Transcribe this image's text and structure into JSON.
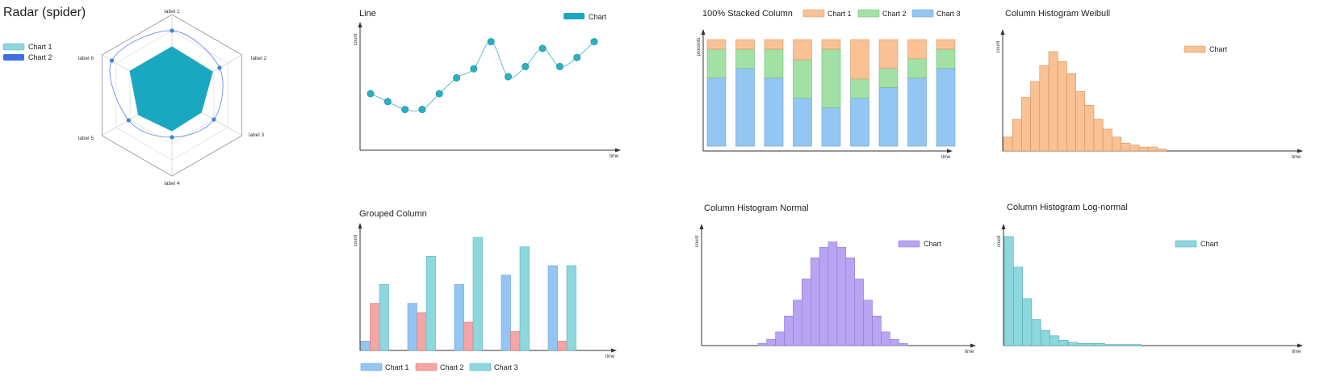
{
  "chart_data": [
    {
      "id": "radar",
      "type": "radar",
      "title": "Radar (spider)",
      "categories": [
        "label 1",
        "label 2",
        "label 3",
        "label 4",
        "label 5",
        "label 6"
      ],
      "max": 5,
      "series": [
        {
          "name": "Chart 1",
          "values": [
            3.0,
            2.9,
            2.1,
            2.2,
            2.4,
            3.0
          ],
          "color": "#1aa8c0",
          "fill": true
        },
        {
          "name": "Chart 2",
          "values": [
            4.0,
            3.4,
            3.0,
            2.6,
            3.1,
            4.3
          ],
          "color": "#3d6fe0",
          "fill": false
        }
      ],
      "legend": "top-left"
    },
    {
      "id": "line",
      "type": "line",
      "title": "Line",
      "xlabel": "time",
      "ylabel": "count",
      "ylim": [
        0,
        10
      ],
      "x": [
        1,
        2,
        3,
        4,
        5,
        6,
        7,
        8,
        9,
        10,
        11,
        12,
        13,
        14
      ],
      "series": [
        {
          "name": "Chart",
          "values": [
            5.0,
            4.3,
            3.6,
            3.6,
            5.0,
            6.4,
            7.2,
            9.6,
            6.5,
            7.4,
            9.0,
            7.4,
            8.2,
            9.6
          ],
          "color": "#2ab0c2"
        }
      ],
      "legend": "top-right"
    },
    {
      "id": "stacked",
      "type": "bar",
      "stacked": "percent",
      "title": "100% Stacked Column",
      "xlabel": "time",
      "ylabel": "procents",
      "ylim": [
        0,
        100
      ],
      "categories": [
        "1",
        "2",
        "3",
        "4",
        "5",
        "6",
        "7",
        "8",
        "9"
      ],
      "series": [
        {
          "name": "Chart 3",
          "values": [
            64,
            73,
            64,
            45,
            36,
            45,
            55,
            64,
            73
          ],
          "color": "#93c6f2",
          "stroke": "#6e9ecc"
        },
        {
          "name": "Chart 2",
          "values": [
            27,
            18,
            27,
            36,
            55,
            18,
            18,
            18,
            18
          ],
          "color": "#a2e0a6",
          "stroke": "#78b87c"
        },
        {
          "name": "Chart 1",
          "values": [
            9,
            9,
            9,
            19,
            9,
            37,
            27,
            18,
            9
          ],
          "color": "#f9c194",
          "stroke": "#d59c6c"
        }
      ],
      "legend_order": [
        "Chart 1",
        "Chart 2",
        "Chart 3"
      ],
      "legend": "top"
    },
    {
      "id": "weibull",
      "type": "histogram",
      "title": "Column Histogram Weibull",
      "xlabel": "time",
      "ylabel": "count",
      "ylim": [
        0,
        10
      ],
      "bins": 36,
      "values": [
        1.4,
        3.2,
        5.4,
        7.0,
        8.6,
        10.0,
        9.0,
        7.8,
        6.0,
        4.6,
        3.2,
        2.2,
        1.4,
        0.8,
        0.6,
        0.4,
        0.4,
        0.2,
        0,
        0,
        0,
        0,
        0,
        0,
        0,
        0,
        0,
        0,
        0,
        0,
        0,
        0,
        0,
        0,
        0,
        0
      ],
      "series": [
        {
          "name": "Chart",
          "color": "#f9c194",
          "stroke": "#d08e58"
        }
      ],
      "legend": "top-right"
    },
    {
      "id": "grouped",
      "type": "bar",
      "title": "Grouped Column",
      "xlabel": "time",
      "ylabel": "count",
      "ylim": [
        0,
        12
      ],
      "categories": [
        "1",
        "2",
        "3",
        "4",
        "5"
      ],
      "series": [
        {
          "name": "Chart 1",
          "values": [
            1,
            5,
            7,
            8,
            9
          ],
          "color": "#93c6f2",
          "stroke": "#6e9ecc"
        },
        {
          "name": "Chart 2",
          "values": [
            5,
            4,
            3,
            2,
            1
          ],
          "color": "#f6a5a5",
          "stroke": "#cf7b7b"
        },
        {
          "name": "Chart 3",
          "values": [
            7,
            10,
            12,
            11,
            9
          ],
          "color": "#8ed7df",
          "stroke": "#5ab2bb"
        }
      ],
      "legend": "bottom"
    },
    {
      "id": "normal",
      "type": "histogram",
      "title": "Column Histogram Normal",
      "xlabel": "time",
      "ylabel": "count",
      "ylim": [
        0,
        10
      ],
      "bins": 40,
      "values": [
        0,
        0,
        0,
        0,
        0,
        0,
        0,
        0,
        0,
        0,
        0,
        0,
        0.2,
        0.6,
        1.3,
        2.8,
        4.3,
        6.3,
        8.3,
        9.3,
        9.8,
        9.3,
        8.3,
        6.3,
        4.3,
        2.8,
        1.3,
        0.6,
        0.2,
        0,
        0,
        0,
        0,
        0,
        0,
        0,
        0,
        0,
        0,
        0
      ],
      "series": [
        {
          "name": "Chart",
          "color": "#b8a4f2",
          "stroke": "#8f7ad2"
        }
      ],
      "legend": "top-right"
    },
    {
      "id": "lognormal",
      "type": "histogram",
      "title": "Column Histogram Log-normal",
      "xlabel": "time",
      "ylabel": "count",
      "ylim": [
        0,
        10
      ],
      "bins": 38,
      "values": [
        10.0,
        7.2,
        4.3,
        2.4,
        1.4,
        0.9,
        0.5,
        0.3,
        0.2,
        0.2,
        0.2,
        0.1,
        0.1,
        0.1,
        0.1,
        0,
        0,
        0,
        0,
        0,
        0,
        0,
        0,
        0,
        0,
        0,
        0,
        0,
        0,
        0,
        0,
        0,
        0,
        0,
        0,
        0,
        0,
        0
      ],
      "series": [
        {
          "name": "Chart",
          "color": "#8ed7df",
          "stroke": "#4fabb6"
        }
      ],
      "legend": "top-right"
    }
  ]
}
